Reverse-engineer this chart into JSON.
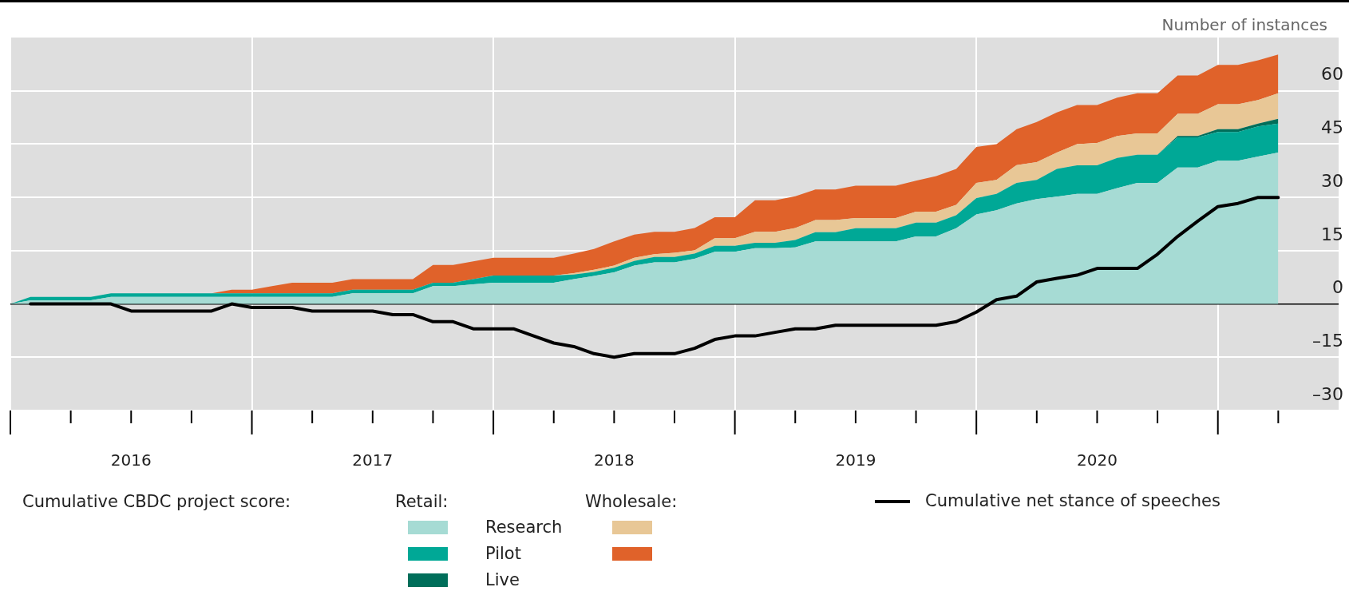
{
  "chart_data": {
    "type": "area",
    "stacked": true,
    "ylabel": "Number of instances",
    "legend_title": "Cumulative CBDC project score:",
    "annotations": [
      "Retail:",
      "Wholesale:"
    ],
    "legend": "bottom",
    "grid": true,
    "marker": "none",
    "x": [
      "2016-01",
      "2016-02",
      "2016-03",
      "2016-04",
      "2016-05",
      "2016-06",
      "2016-07",
      "2016-08",
      "2016-09",
      "2016-10",
      "2016-11",
      "2016-12",
      "2017-01",
      "2017-02",
      "2017-03",
      "2017-04",
      "2017-05",
      "2017-06",
      "2017-07",
      "2017-08",
      "2017-09",
      "2017-10",
      "2017-11",
      "2017-12",
      "2018-01",
      "2018-02",
      "2018-03",
      "2018-04",
      "2018-05",
      "2018-06",
      "2018-07",
      "2018-08",
      "2018-09",
      "2018-10",
      "2018-11",
      "2018-12",
      "2019-01",
      "2019-02",
      "2019-03",
      "2019-04",
      "2019-05",
      "2019-06",
      "2019-07",
      "2019-08",
      "2019-09",
      "2019-10",
      "2019-11",
      "2019-12",
      "2020-01",
      "2020-02",
      "2020-03",
      "2020-04",
      "2020-05",
      "2020-06",
      "2020-07",
      "2020-08",
      "2020-09",
      "2020-10",
      "2020-11",
      "2020-12",
      "2021-01",
      "2021-02",
      "2021-03",
      "2021-04"
    ],
    "xlim": [
      "2016-01",
      "2021-07"
    ],
    "xticks": [
      {
        "value": "2016-01",
        "label": null
      },
      {
        "value": "2016-04",
        "label": null
      },
      {
        "value": "2016-07",
        "label": "2016"
      },
      {
        "value": "2016-10",
        "label": null
      },
      {
        "value": "2017-01",
        "label": null
      },
      {
        "value": "2017-04",
        "label": null
      },
      {
        "value": "2017-07",
        "label": "2017"
      },
      {
        "value": "2017-10",
        "label": null
      },
      {
        "value": "2018-01",
        "label": null
      },
      {
        "value": "2018-04",
        "label": null
      },
      {
        "value": "2018-07",
        "label": "2018"
      },
      {
        "value": "2018-10",
        "label": null
      },
      {
        "value": "2019-01",
        "label": null
      },
      {
        "value": "2019-04",
        "label": null
      },
      {
        "value": "2019-07",
        "label": "2019"
      },
      {
        "value": "2019-10",
        "label": null
      },
      {
        "value": "2020-01",
        "label": null
      },
      {
        "value": "2020-04",
        "label": null
      },
      {
        "value": "2020-07",
        "label": "2020"
      },
      {
        "value": "2020-10",
        "label": null
      },
      {
        "value": "2021-01",
        "label": null
      },
      {
        "value": "2021-04",
        "label": null
      }
    ],
    "ylim": [
      -30,
      75
    ],
    "yticks": [
      {
        "value": -30,
        "label": "–30"
      },
      {
        "value": -15,
        "label": "–15"
      },
      0,
      15,
      30,
      45,
      60
    ],
    "series": [
      {
        "name": "Research",
        "color": "#a6dbd4",
        "values": [
          0,
          1,
          1,
          1,
          1,
          2,
          2,
          2,
          2,
          2,
          2,
          2,
          2,
          2,
          2,
          2,
          2,
          3,
          3,
          3,
          3,
          5,
          5,
          5.5,
          6,
          6,
          6,
          6,
          7,
          7.9,
          8.9,
          10.8,
          11.7,
          11.7,
          12.7,
          14.7,
          14.7,
          15.7,
          15.7,
          15.9,
          17.6,
          17.6,
          17.6,
          17.6,
          17.6,
          19,
          19,
          21.3,
          25.2,
          26.4,
          28.3,
          29.5,
          30.2,
          31,
          31,
          32.6,
          34.1,
          34.1,
          38.4,
          38.4,
          40.3,
          40.3,
          41.5,
          42.6
        ]
      },
      {
        "name": "Pilot",
        "color": "#00a896",
        "values": [
          0,
          1,
          1,
          1,
          1,
          1,
          1,
          1,
          1,
          1,
          1,
          1,
          1,
          1,
          1,
          1,
          1,
          1,
          1,
          1,
          1,
          1,
          1,
          1.5,
          2,
          2,
          2,
          2,
          1.3,
          1.1,
          1.3,
          1.3,
          1.5,
          1.5,
          1.5,
          1.7,
          1.7,
          1.5,
          1.5,
          2.1,
          2.6,
          2.6,
          3.7,
          3.7,
          3.7,
          3.9,
          3.9,
          3.7,
          4.6,
          4.6,
          5.8,
          5.4,
          7.8,
          8,
          8,
          8.5,
          7.9,
          7.9,
          8.5,
          8.5,
          8.1,
          8.1,
          8.5,
          8.2
        ]
      },
      {
        "name": "Live",
        "color": "#006e5a",
        "values": [
          0,
          0,
          0,
          0,
          0,
          0,
          0,
          0,
          0,
          0,
          0,
          0,
          0,
          0,
          0,
          0,
          0,
          0,
          0,
          0,
          0,
          0,
          0,
          0,
          0,
          0,
          0,
          0,
          0,
          0,
          0,
          0,
          0,
          0,
          0,
          0,
          0,
          0,
          0,
          0,
          0,
          0,
          0,
          0,
          0,
          0,
          0,
          0,
          0,
          0,
          0,
          0,
          0,
          0,
          0,
          0,
          0,
          0,
          0.4,
          0.4,
          0.8,
          0.8,
          0.8,
          1.3
        ]
      },
      {
        "color": "#e8c796",
        "values": [
          0,
          0,
          0,
          0,
          0,
          0,
          0,
          0,
          0,
          0,
          0,
          0,
          0,
          0,
          0,
          0,
          0,
          0,
          0,
          0,
          0,
          0,
          0,
          0,
          0,
          0,
          0,
          0,
          0.4,
          0.6,
          0.6,
          0.9,
          0.8,
          1.2,
          0.9,
          2.1,
          2.1,
          3.1,
          3.1,
          3.4,
          3.4,
          3.4,
          2.9,
          2.9,
          2.9,
          3.1,
          3.1,
          2.9,
          4.3,
          3.9,
          5,
          5,
          4.6,
          6,
          6.3,
          6.2,
          6,
          6,
          6.2,
          6.2,
          7,
          7,
          6.6,
          7.2
        ]
      },
      {
        "color": "#e0622a",
        "values": [
          0,
          0,
          0,
          0,
          0,
          0,
          0,
          0,
          0,
          0,
          0,
          1,
          1,
          2,
          3,
          3,
          3,
          3,
          3,
          3,
          3,
          5,
          5,
          5,
          5,
          5,
          5,
          5,
          5.5,
          5.9,
          6.8,
          6.5,
          6.3,
          5.9,
          6.3,
          5.9,
          5.9,
          8.9,
          8.9,
          8.9,
          8.6,
          8.6,
          9.1,
          9.1,
          9.1,
          8.7,
          10,
          10.1,
          10.1,
          10.1,
          10.1,
          11.3,
          11.3,
          11,
          10.7,
          10.8,
          11.3,
          11.3,
          10.8,
          10.8,
          11.1,
          11.1,
          11.2,
          10.9
        ]
      },
      {
        "name": "Cumulative net stance of speeches",
        "type": "line",
        "color": "#000000",
        "line_style": "solid",
        "values": [
          null,
          0,
          0,
          0,
          0,
          0,
          -2,
          -2,
          -2,
          -2,
          -2,
          0,
          -1,
          -1,
          -1,
          -2,
          -2,
          -2,
          -2,
          -3,
          -3,
          -5,
          -5,
          -7,
          -7,
          -7,
          -9,
          -11,
          -12,
          -14,
          -15,
          -14,
          -14,
          -14,
          -12.5,
          -10,
          -9,
          -9,
          -8,
          -7,
          -7,
          -6,
          -6,
          -6,
          -6,
          -6,
          -6,
          -5,
          -2.3,
          1.2,
          2.2,
          6.2,
          7.2,
          8.1,
          10,
          10,
          10,
          14,
          19,
          23.3,
          27.4,
          28.3,
          30,
          30
        ]
      }
    ]
  }
}
